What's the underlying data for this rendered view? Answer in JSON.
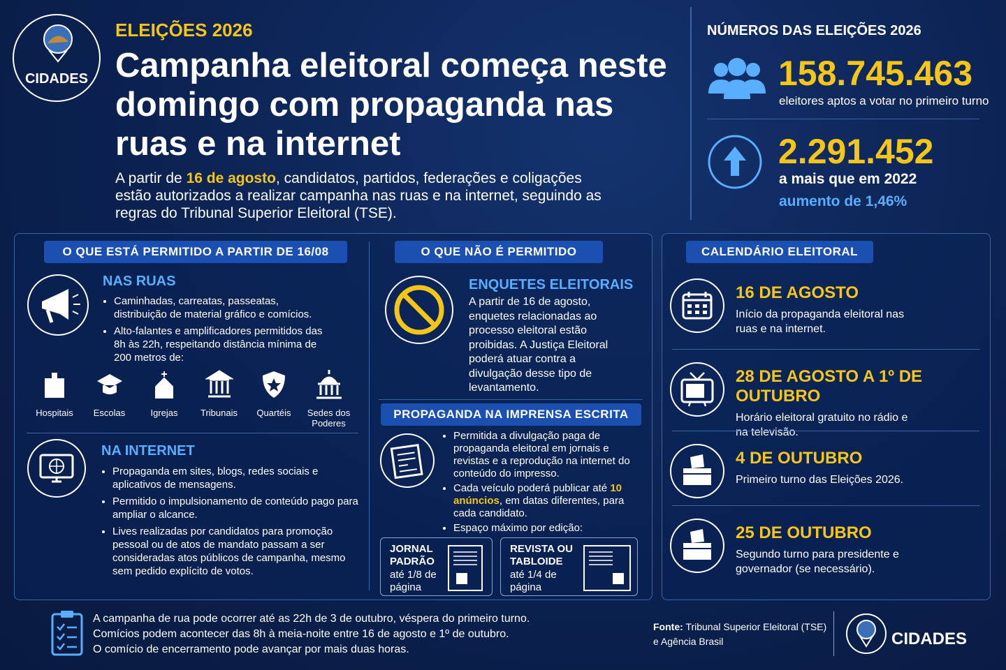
{
  "header": {
    "logo": "CIDADES",
    "kicker": "ELEIÇÕES 2026",
    "title": "Campanha eleitoral começa neste domingo com propaganda nas ruas e na internet",
    "lead": [
      "A partir de ",
      "16 de agosto",
      ", candidatos, partidos, federações e coligações estão autorizados a realizar campanha nas ruas e na internet, seguindo as regras do Tribunal Superior Eleitoral (TSE)."
    ]
  },
  "numbers": {
    "title": "NÚMEROS DAS ELEIÇÕES 2026",
    "voters": {
      "value": "158.745.463",
      "label": "eleitores aptos a votar no primeiro turno"
    },
    "increase": {
      "value": "2.291.452",
      "label": "a mais que em 2022",
      "growth": "aumento de 1,46%"
    }
  },
  "allowed": {
    "title": "O QUE ESTÁ PERMITIDO A PARTIR DE 16/08",
    "streets": {
      "title": "NAS RUAS",
      "items": [
        "Caminhadas, carreatas, passeatas, distribuição de material gráfico e comícios.",
        "Alto-falantes e amplificadores permitidos das 8h às 22h, respeitando distância mínima de 200 metros de:"
      ]
    },
    "places": [
      "Hospitais",
      "Escolas",
      "Igrejas",
      "Tribunais",
      "Quartéis",
      "Sedes dos Poderes"
    ],
    "internet": {
      "title": "NA INTERNET",
      "items": [
        "Propaganda em sites, blogs, redes sociais e aplicativos de mensagens.",
        "Permitido o impulsionamento de conteúdo pago para ampliar o alcance.",
        "Lives realizadas por candidatos para promoção pessoal ou de atos de mandato passam a ser consideradas atos públicos de campanha, mesmo sem pedido explícito de votos."
      ]
    }
  },
  "not_allowed": {
    "title": "O QUE NÃO É PERMITIDO",
    "polls": {
      "title": "ENQUETES ELEITORAIS",
      "text": "A partir de 16 de agosto, enquetes relacionadas ao processo eleitoral estão proibidas. A Justiça Eleitoral poderá atuar contra a divulgação desse tipo de levantamento."
    }
  },
  "print": {
    "title": "PROPAGANDA NA IMPRENSA ESCRITA",
    "item_1": "Permitida a divulgação paga de propaganda eleitoral em jornais e revistas e a reprodução na internet do conteúdo do impresso.",
    "item_2": [
      "Cada veículo poderá publicar até ",
      "10 anúncios",
      ", em datas diferentes, para cada candidato."
    ],
    "item_3": "Espaço máximo por edição:",
    "formats": [
      {
        "name": "JORNAL PADRÃO",
        "size": "até 1/8 de página"
      },
      {
        "name": "REVISTA OU TABLOIDE",
        "size": "até 1/4 de página"
      }
    ]
  },
  "calendar": {
    "title": "CALENDÁRIO ELEITORAL",
    "events": [
      {
        "date": "16 DE AGOSTO",
        "text": "Início da propaganda eleitoral nas ruas e na internet."
      },
      {
        "date": "28 DE AGOSTO A 1º DE OUTUBRO",
        "text": "Horário eleitoral gratuito no rádio e na televisão."
      },
      {
        "date": "4 DE OUTUBRO",
        "text": "Primeiro turno das Eleições 2026."
      },
      {
        "date": "25 DE OUTUBRO",
        "text": "Segundo turno para presidente e governador (se necessário)."
      }
    ]
  },
  "footer": {
    "notes": [
      "A campanha de rua pode ocorrer até as 22h de 3 de outubro, véspera do primeiro turno.",
      "Comícios podem acontecer das 8h à meia-noite entre 16 de agosto e 1º de outubro.",
      "O comício de encerramento pode avançar por mais duas horas."
    ],
    "source_label": "Fonte:",
    "source": "Tribunal Superior Eleitoral (TSE) e Agência Brasil",
    "logo": "CIDADES"
  }
}
